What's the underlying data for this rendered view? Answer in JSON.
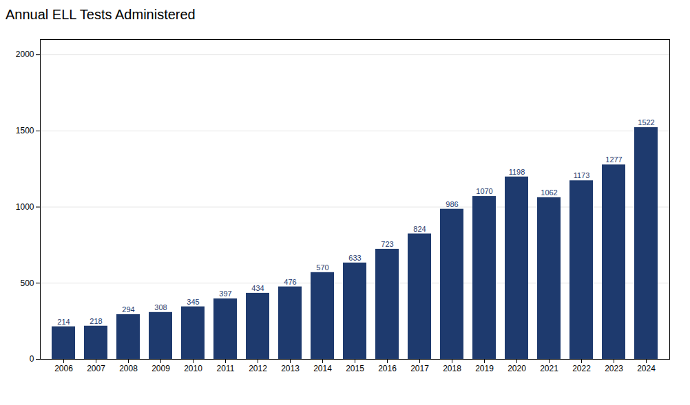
{
  "chart_data": {
    "type": "bar",
    "title": "Annual ELL Tests Administered",
    "categories": [
      "2006",
      "2007",
      "2008",
      "2009",
      "2010",
      "2011",
      "2012",
      "2013",
      "2014",
      "2015",
      "2016",
      "2017",
      "2018",
      "2019",
      "2020",
      "2021",
      "2022",
      "2023",
      "2024"
    ],
    "values": [
      214,
      218,
      294,
      308,
      345,
      397,
      434,
      476,
      570,
      633,
      723,
      824,
      986,
      1070,
      1198,
      1062,
      1173,
      1277,
      1522
    ],
    "color": "#1e3a6e",
    "ylim": [
      0,
      2100
    ],
    "yticks": [
      0,
      500,
      1000,
      1500,
      2000
    ],
    "grid": true,
    "data_labels": true
  }
}
